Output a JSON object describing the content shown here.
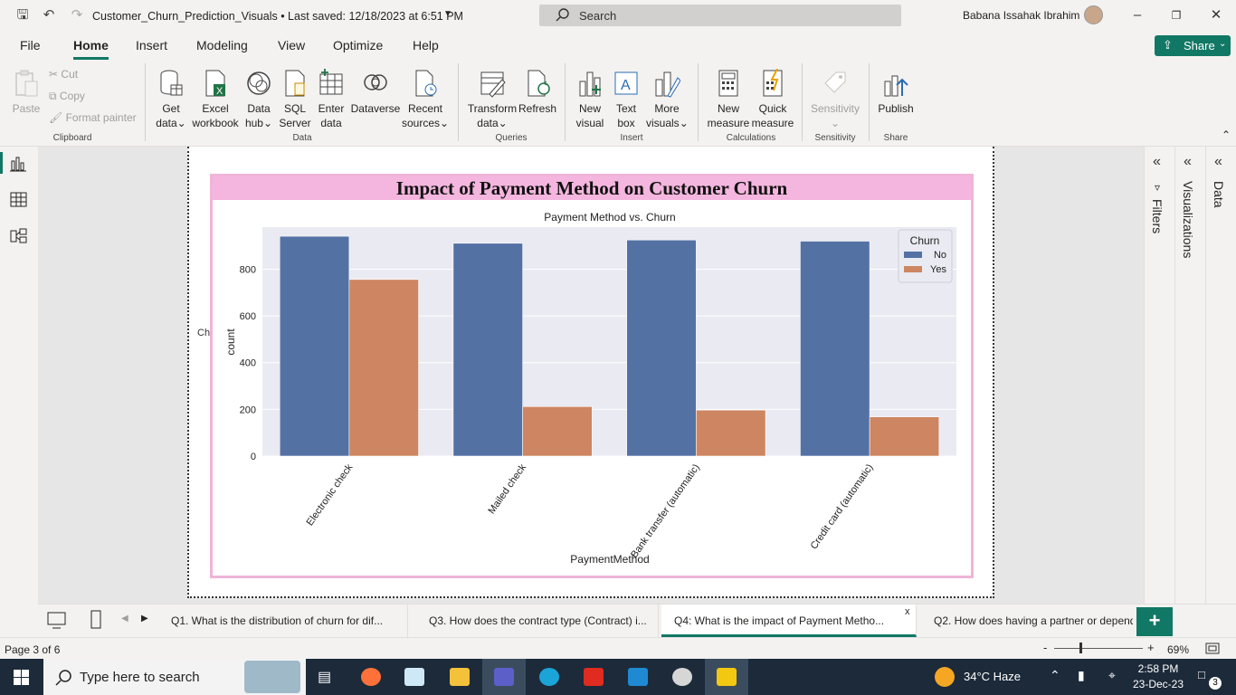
{
  "window": {
    "title": "Customer_Churn_Prediction_Visuals • Last saved: 12/18/2023 at 6:51 PM",
    "search_placeholder": "Search",
    "user": "Babana Issahak Ibrahim"
  },
  "menu": [
    "File",
    "Home",
    "Insert",
    "Modeling",
    "View",
    "Optimize",
    "Help"
  ],
  "share_label": "Share",
  "ribbon": {
    "clipboard": {
      "paste": "Paste",
      "cut": "Cut",
      "copy": "Copy",
      "format_painter": "Format painter",
      "group": "Clipboard"
    },
    "data": {
      "get_data": [
        "Get",
        "data"
      ],
      "excel": [
        "Excel",
        "workbook"
      ],
      "data_hub": [
        "Data",
        "hub"
      ],
      "sql": [
        "SQL",
        "Server"
      ],
      "enter": [
        "Enter",
        "data"
      ],
      "dataverse": "Dataverse",
      "recent": [
        "Recent",
        "sources"
      ],
      "group": "Data"
    },
    "queries": {
      "transform": [
        "Transform",
        "data"
      ],
      "refresh": "Refresh",
      "group": "Queries"
    },
    "insert": {
      "new_visual": [
        "New",
        "visual"
      ],
      "text_box": [
        "Text",
        "box"
      ],
      "more_visuals": [
        "More",
        "visuals"
      ],
      "group": "Insert"
    },
    "calculations": {
      "new_measure": [
        "New",
        "measure"
      ],
      "quick_measure": [
        "Quick",
        "measure"
      ],
      "group": "Calculations"
    },
    "sensitivity": {
      "label": "Sensitivity",
      "group": "Sensitivity"
    },
    "share": {
      "publish": "Publish",
      "group": "Share"
    }
  },
  "report": {
    "card_title": "Impact of Payment Method on Customer Churn",
    "truncated_label": "Ch"
  },
  "chart_data": {
    "type": "bar",
    "title": "Payment Method vs. Churn",
    "xlabel": "PaymentMethod",
    "ylabel": "count",
    "categories": [
      "Electronic check",
      "Mailed check",
      "Bank transfer (automatic)",
      "Credit card (automatic)"
    ],
    "series": [
      {
        "name": "No",
        "values": [
          941,
          911,
          925,
          920
        ],
        "color": "#5471a4"
      },
      {
        "name": "Yes",
        "values": [
          756,
          212,
          197,
          168
        ],
        "color": "#cd8661"
      }
    ],
    "ylim": [
      0,
      980
    ],
    "yticks": [
      0,
      200,
      400,
      600,
      800
    ],
    "legend_title": "Churn",
    "legend_position": "top-right",
    "grid": true
  },
  "panes": {
    "filters": "Filters",
    "visualizations": "Visualizations",
    "data": "Data"
  },
  "page_tabs": [
    "Q1. What is the distribution of churn for dif...",
    "Q3. How does the contract type (Contract) i...",
    "Q4: What is the impact of Payment Metho...",
    "Q2. How does having a partner or depende"
  ],
  "status": {
    "page": "Page 3 of 6",
    "zoom": "69%"
  },
  "taskbar": {
    "search": "Type here to search",
    "weather": "34°C  Haze",
    "time": "2:58 PM",
    "date": "23-Dec-23",
    "notifications": "3"
  }
}
